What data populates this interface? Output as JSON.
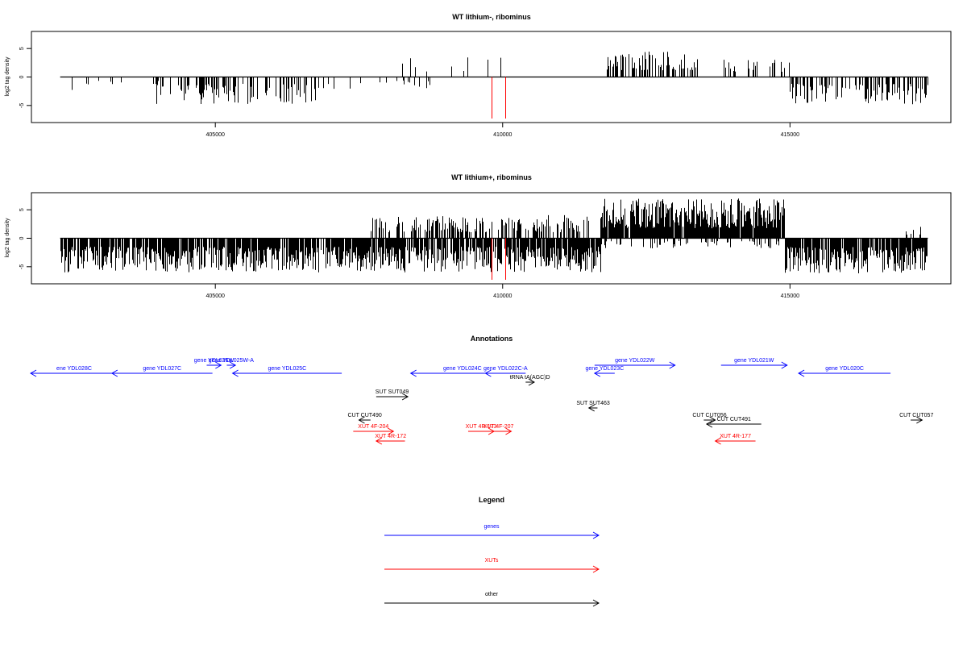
{
  "colors": {
    "genes": "#0000ff",
    "xuts": "#ff0000",
    "other": "#000000",
    "frame": "#000000"
  },
  "chart_data": [
    {
      "type": "bar",
      "title": "WT lithium-, ribominus",
      "ylabel": "log2 tag density",
      "xlim": [
        401800,
        417800
      ],
      "ylim": [
        -8,
        8
      ],
      "xticks": [
        "405000",
        "410000",
        "415000"
      ],
      "xtick_values": [
        405000,
        410000,
        415000
      ],
      "yticks": [
        "5",
        "0",
        "-5"
      ],
      "ytick_values": [
        5,
        0,
        -5
      ],
      "highlight_color": "#ff0000",
      "highlight": [
        {
          "x": 409800,
          "y": -7.3
        },
        {
          "x": 410050,
          "y": -7.3
        }
      ],
      "profile": [
        {
          "from": 402300,
          "to": 404000,
          "sign": -1,
          "amp": 2.5,
          "density": 0.1,
          "seed": 3
        },
        {
          "from": 403900,
          "to": 406800,
          "sign": -1,
          "amp": 4.8,
          "density": 0.45,
          "seed": 5
        },
        {
          "from": 406800,
          "to": 409000,
          "sign": -1,
          "amp": 2.2,
          "density": 0.08,
          "seed": 7
        },
        {
          "from": 407600,
          "to": 410600,
          "sign": 1,
          "amp": 3.6,
          "density": 0.05,
          "seed": 9
        },
        {
          "from": 411800,
          "to": 413400,
          "sign": 1,
          "amp": 4.5,
          "density": 0.55,
          "seed": 11
        },
        {
          "from": 413800,
          "to": 415000,
          "sign": 1,
          "amp": 3.4,
          "density": 0.2,
          "seed": 13
        },
        {
          "from": 415000,
          "to": 417400,
          "sign": -1,
          "amp": 4.8,
          "density": 0.5,
          "seed": 15
        }
      ]
    },
    {
      "type": "bar",
      "title": "WT lithium+, ribominus",
      "ylabel": "log2 tag density",
      "xlim": [
        401800,
        417800
      ],
      "ylim": [
        -8,
        8
      ],
      "xticks": [
        "405000",
        "410000",
        "415000"
      ],
      "xtick_values": [
        405000,
        410000,
        415000
      ],
      "yticks": [
        "5",
        "0",
        "-5"
      ],
      "ytick_values": [
        5,
        0,
        -5
      ],
      "highlight_color": "#ff0000",
      "highlight": [
        {
          "x": 409800,
          "y": -7.3
        },
        {
          "x": 410050,
          "y": -7.3
        }
      ],
      "profile": [
        {
          "from": 402300,
          "to": 411700,
          "sign": -1,
          "amp": 6.0,
          "density": 0.85,
          "seed": 21
        },
        {
          "from": 407600,
          "to": 411500,
          "sign": 1,
          "amp": 4.2,
          "density": 0.45,
          "seed": 23
        },
        {
          "from": 411700,
          "to": 414900,
          "sign": 1,
          "amp": 7.0,
          "density": 0.95,
          "seed": 25
        },
        {
          "from": 411700,
          "to": 414900,
          "sign": -1,
          "amp": 1.8,
          "density": 0.25,
          "seed": 27
        },
        {
          "from": 414900,
          "to": 417400,
          "sign": -1,
          "amp": 6.2,
          "density": 0.9,
          "seed": 29
        },
        {
          "from": 417000,
          "to": 417400,
          "sign": 1,
          "amp": 2.5,
          "density": 0.3,
          "seed": 31
        }
      ]
    }
  ],
  "annotations": {
    "title": "Annotations",
    "features": [
      {
        "label": "ene YDL028C",
        "kind": "gene",
        "from": 401500,
        "to": 403300,
        "row": 1,
        "strand": "-"
      },
      {
        "label": "gene YDL027C",
        "kind": "gene",
        "from": 403200,
        "to": 404950,
        "row": 1,
        "strand": "-"
      },
      {
        "label": "gene YDL026W",
        "kind": "gene",
        "from": 404850,
        "to": 405100,
        "row": 0,
        "strand": "+"
      },
      {
        "label": "gene YDL025W-A",
        "kind": "gene",
        "from": 405200,
        "to": 405350,
        "row": 0,
        "strand": "+"
      },
      {
        "label": "gene YDL025C",
        "kind": "gene",
        "from": 405300,
        "to": 407200,
        "row": 1,
        "strand": "-"
      },
      {
        "label": "gene YDL024C",
        "kind": "gene",
        "from": 408400,
        "to": 410200,
        "row": 1,
        "strand": "-"
      },
      {
        "label": "gene YDL022C-A",
        "kind": "gene",
        "from": 409700,
        "to": 410400,
        "row": 1,
        "strand": "-"
      },
      {
        "label": "gene YDL022W",
        "kind": "gene",
        "from": 411600,
        "to": 413000,
        "row": 0,
        "strand": "+"
      },
      {
        "label": "gene YDL023C",
        "kind": "gene",
        "from": 411600,
        "to": 411950,
        "row": 1,
        "strand": "-"
      },
      {
        "label": "gene YDL021W",
        "kind": "gene",
        "from": 413800,
        "to": 414950,
        "row": 0,
        "strand": "+"
      },
      {
        "label": "gene YDL020C",
        "kind": "gene",
        "from": 415150,
        "to": 416750,
        "row": 1,
        "strand": "-"
      },
      {
        "label": "tRNA tA(AGC)D",
        "kind": "other",
        "from": 410400,
        "to": 410550,
        "row": 2,
        "strand": "+"
      },
      {
        "label": "SUT SUT049",
        "kind": "other",
        "from": 407800,
        "to": 408350,
        "row": 3,
        "strand": "+"
      },
      {
        "label": "SUT SUT463",
        "kind": "other",
        "from": 411500,
        "to": 411650,
        "row": 4,
        "strand": "-"
      },
      {
        "label": "CUT CUT490",
        "kind": "other",
        "from": 407500,
        "to": 407700,
        "row": 5,
        "strand": "-"
      },
      {
        "label": "CUT CUT056",
        "kind": "other",
        "from": 413500,
        "to": 413700,
        "row": 5,
        "strand": "+"
      },
      {
        "label": "CUT CUT491",
        "kind": "other",
        "from": 413550,
        "to": 414500,
        "row": 6,
        "strand": "-"
      },
      {
        "label": "CUT CUT057",
        "kind": "other",
        "from": 417100,
        "to": 417300,
        "row": 5,
        "strand": "+"
      },
      {
        "label": "XUT 4F-204",
        "kind": "xut",
        "from": 407400,
        "to": 408100,
        "row": 7,
        "strand": "+"
      },
      {
        "label": "XUT 4R-172",
        "kind": "xut",
        "from": 407800,
        "to": 408300,
        "row": 8,
        "strand": "-"
      },
      {
        "label": "XUT 4R-173",
        "kind": "xut",
        "from": 409400,
        "to": 409850,
        "row": 7,
        "strand": "+"
      },
      {
        "label": "XUT 4F-207",
        "kind": "xut",
        "from": 409700,
        "to": 410150,
        "row": 7,
        "strand": "+"
      },
      {
        "label": "XUT 4R-177",
        "kind": "xut",
        "from": 413700,
        "to": 414400,
        "row": 8,
        "strand": "-"
      }
    ]
  },
  "legend": {
    "title": "Legend",
    "items": [
      {
        "label": "genes",
        "color": "#0000ff"
      },
      {
        "label": "XUTs",
        "color": "#ff0000"
      },
      {
        "label": "other",
        "color": "#000000"
      }
    ]
  }
}
